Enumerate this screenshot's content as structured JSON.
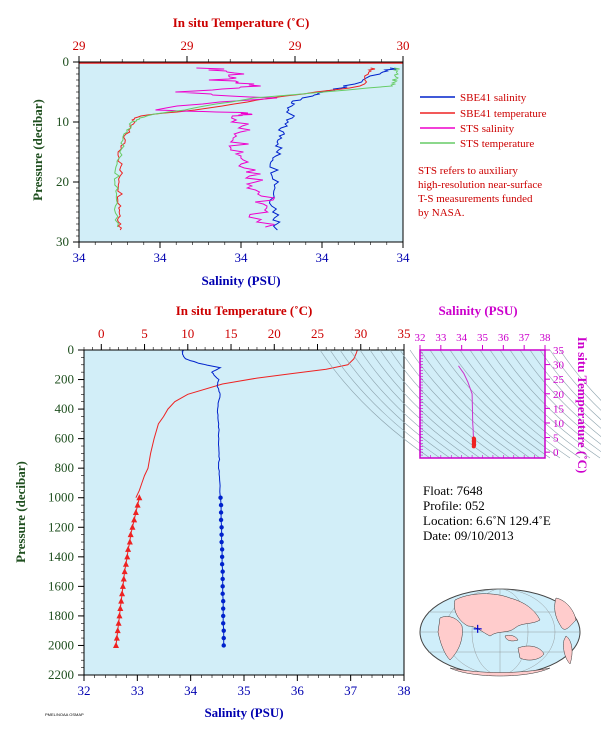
{
  "colors": {
    "panel_bg": "#d2eef8",
    "salinity": "#0022cc",
    "temperature": "#ee2222",
    "sts_salinity": "#ee00cc",
    "sts_temperature": "#66cc66",
    "axis_red": "#cc0000",
    "axis_blue": "#0000b0",
    "axis_green": "#1f4f1f",
    "axis_magenta": "#cc00cc"
  },
  "chart_data": [
    {
      "id": "near-surface",
      "type": "line",
      "top_axis_label": "In situ Temperature (˚C)",
      "top_ticks": [
        "29",
        "29",
        "29",
        "30"
      ],
      "bottom_axis_label": "Salinity (PSU)",
      "bottom_ticks": [
        "34",
        "34",
        "34",
        "34",
        "34"
      ],
      "yaxis_label": "Pressure (decibar)",
      "y_ticks": [
        "0",
        "10",
        "20",
        "30"
      ],
      "ylim": [
        30,
        0
      ],
      "xlim_salinity": [
        34.0,
        34.4
      ],
      "xlim_temperature": [
        28.9,
        30.0
      ],
      "legend": [
        {
          "label": "SBE41 salinity",
          "color": "#0022cc"
        },
        {
          "label": "SBE41 temperature",
          "color": "#ee2222"
        },
        {
          "label": "STS salinity",
          "color": "#ee00cc"
        },
        {
          "label": "STS temperature",
          "color": "#66cc66"
        }
      ],
      "note": [
        "STS refers to auxiliary",
        "high-resolution near-surface",
        "T-S measurements funded",
        "by NASA."
      ],
      "series": [
        {
          "name": "SBE41 salinity",
          "x": [
            34.39,
            34.37,
            34.33,
            34.3,
            34.28,
            34.26,
            34.26,
            34.25,
            34.25,
            34.245,
            34.24,
            34.245,
            34.24,
            34.245,
            34.245
          ],
          "y": [
            1,
            2,
            4,
            5,
            6,
            7,
            9,
            11,
            13,
            15,
            17,
            20,
            23,
            26,
            28
          ]
        },
        {
          "name": "SBE41 temperature",
          "x": [
            29.9,
            29.88,
            29.86,
            29.55,
            29.3,
            29.1,
            29.08,
            29.06,
            29.04,
            29.04,
            29.04,
            29.04,
            29.04,
            29.04
          ],
          "y": [
            1,
            2,
            4,
            6,
            8,
            9,
            10,
            12,
            15,
            18,
            21,
            24,
            26,
            28
          ]
        },
        {
          "name": "STS salinity",
          "x": [
            34.16,
            34.2,
            34.17,
            34.22,
            34.13,
            34.23,
            34.08,
            34.21,
            34.2,
            34.2,
            34.2,
            34.2,
            34.21,
            34.22,
            34.22,
            34.23,
            34.22,
            34.23
          ],
          "y": [
            1,
            2,
            3,
            4,
            5,
            6,
            8,
            8.5,
            9,
            11,
            13,
            15,
            17,
            19,
            21,
            23,
            25,
            27.5
          ]
        },
        {
          "name": "STS temperature",
          "x": [
            29.98,
            29.98,
            29.97,
            29.96,
            29.5,
            29.25,
            29.12,
            29.08,
            29.06,
            29.04,
            29.03,
            29.03,
            29.03,
            29.03
          ],
          "y": [
            1,
            2,
            3,
            4,
            6,
            8,
            9,
            10,
            12,
            15,
            18,
            21,
            24,
            27.5
          ]
        }
      ]
    },
    {
      "id": "full-profile",
      "type": "line",
      "top_axis_label": "In situ Temperature (˚C)",
      "top_ticks": [
        "0",
        "5",
        "10",
        "15",
        "20",
        "25",
        "30",
        "35"
      ],
      "bottom_axis_label": "Salinity (PSU)",
      "bottom_ticks": [
        "32",
        "33",
        "34",
        "35",
        "36",
        "37",
        "38"
      ],
      "yaxis_label": "Pressure (decibar)",
      "y_ticks": [
        "0",
        "200",
        "400",
        "600",
        "800",
        "1000",
        "1200",
        "1400",
        "1600",
        "1800",
        "2000",
        "2200"
      ],
      "ylim": [
        2200,
        0
      ],
      "xlim_salinity": [
        32,
        38
      ],
      "xlim_temperature": [
        -2,
        35
      ],
      "series": [
        {
          "name": "Temperature",
          "x": [
            29.6,
            29.5,
            29.2,
            28.5,
            26,
            22,
            18,
            14,
            10,
            8.5,
            7.7,
            7.2,
            6.6,
            6.1,
            5.7,
            5.4,
            5.0,
            4.7,
            4.4,
            4.0
          ],
          "y": [
            0,
            20,
            60,
            100,
            130,
            160,
            190,
            230,
            300,
            350,
            400,
            450,
            500,
            600,
            700,
            800,
            850,
            900,
            950,
            1000
          ]
        },
        {
          "name": "Temperature (deep points)",
          "x": [
            4.4,
            4.2,
            4.0,
            3.8,
            3.6,
            3.4,
            3.3,
            3.1,
            3.0,
            2.85,
            2.7,
            2.6,
            2.5,
            2.4,
            2.3,
            2.2,
            2.1,
            2.0,
            1.9,
            1.8,
            1.7
          ],
          "y": [
            1000,
            1050,
            1100,
            1150,
            1200,
            1250,
            1300,
            1350,
            1400,
            1450,
            1500,
            1550,
            1600,
            1650,
            1700,
            1750,
            1800,
            1850,
            1900,
            1950,
            2000
          ]
        },
        {
          "name": "Salinity",
          "x": [
            33.85,
            33.85,
            33.9,
            34.15,
            34.55,
            34.4,
            34.52,
            34.5,
            34.55,
            34.5,
            34.53,
            34.52,
            34.54,
            34.53,
            34.55,
            34.56
          ],
          "y": [
            0,
            30,
            60,
            90,
            120,
            150,
            200,
            250,
            300,
            400,
            500,
            600,
            700,
            800,
            900,
            1000
          ]
        },
        {
          "name": "Salinity (deep points)",
          "x": [
            34.56,
            34.57,
            34.57,
            34.57,
            34.58,
            34.58,
            34.58,
            34.59,
            34.59,
            34.59,
            34.6,
            34.6,
            34.6,
            34.6,
            34.61,
            34.61,
            34.61,
            34.61,
            34.62,
            34.62,
            34.62
          ],
          "y": [
            1000,
            1050,
            1100,
            1150,
            1200,
            1250,
            1300,
            1350,
            1400,
            1450,
            1500,
            1550,
            1600,
            1650,
            1700,
            1750,
            1800,
            1850,
            1900,
            1950,
            2000
          ]
        }
      ]
    },
    {
      "id": "ts-diagram",
      "type": "scatter",
      "top_axis_label": "Salinity (PSU)",
      "top_ticks": [
        "32",
        "33",
        "34",
        "35",
        "36",
        "37",
        "38"
      ],
      "right_axis_label": "In situ Temperature (˚C)",
      "right_ticks": [
        "0",
        "5",
        "10",
        "15",
        "20",
        "25",
        "30",
        "35"
      ],
      "xlim": [
        32,
        38
      ],
      "ylim": [
        -2,
        35
      ],
      "series": [
        {
          "name": "T-S curve",
          "x": [
            33.85,
            33.9,
            34.1,
            34.3,
            34.5,
            34.52,
            34.53,
            34.55,
            34.56,
            34.58,
            34.6,
            34.62
          ],
          "y": [
            29.6,
            29,
            27,
            24,
            20,
            14,
            10,
            8,
            6,
            4.4,
            3,
            1.7
          ]
        }
      ]
    }
  ],
  "float_info": {
    "float": "Float:  7648",
    "profile": "Profile:  052",
    "location": "Location:  6.6˚N  129.4˚E",
    "date": "Date:  09/10/2013"
  },
  "map": {
    "label": "world map with float location",
    "float_lat": 6.6,
    "float_lon": 129.4
  },
  "footer_text": "PMEL/NOAA OSMAP"
}
